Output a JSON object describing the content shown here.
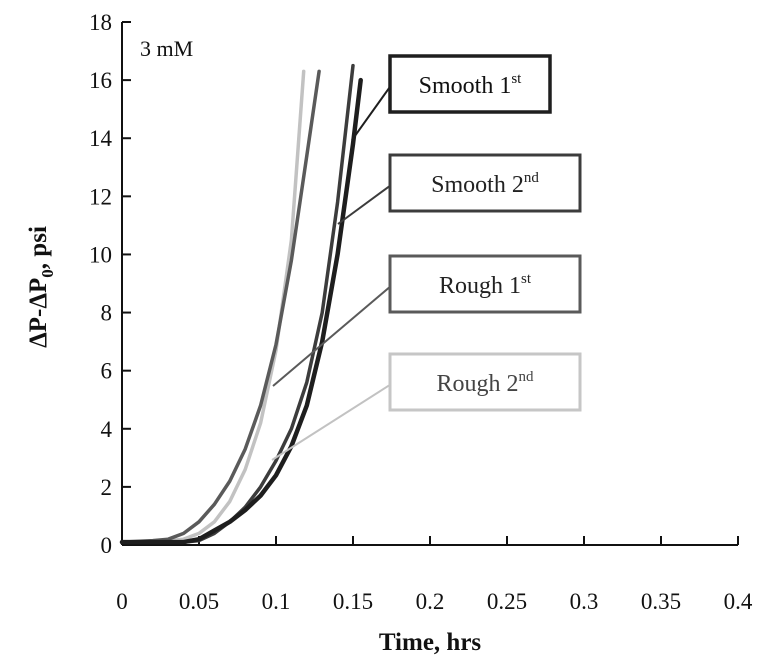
{
  "chart_data": {
    "type": "line",
    "annotation": "3 mM",
    "xlabel": "Time, hrs",
    "ylabel": "ΔP-ΔP",
    "ylabel_subscript": "0",
    "ylabel_unit": ", psi",
    "xlim": [
      0,
      0.4
    ],
    "ylim": [
      0,
      18
    ],
    "x_ticks": [
      0,
      0.05,
      0.1,
      0.15,
      0.2,
      0.25,
      0.3,
      0.35,
      0.4
    ],
    "x_tick_labels": [
      "0",
      "0.05",
      "0.1",
      "0.15",
      "0.2",
      "0.25",
      "0.3",
      "0.35",
      "0.4"
    ],
    "y_ticks": [
      0,
      2,
      4,
      6,
      8,
      10,
      12,
      14,
      16,
      18
    ],
    "y_tick_labels": [
      "0",
      "2",
      "4",
      "6",
      "8",
      "10",
      "12",
      "14",
      "16",
      "18"
    ],
    "grid": false,
    "legend_placement": "right, callout labels",
    "series": [
      {
        "name": "Smooth 1",
        "name_sup": "st",
        "color": "#1e1e1e",
        "width": 4.5,
        "x": [
          0,
          0.02,
          0.04,
          0.05,
          0.06,
          0.07,
          0.08,
          0.09,
          0.1,
          0.11,
          0.12,
          0.13,
          0.14,
          0.15,
          0.155
        ],
        "y": [
          0.1,
          0.1,
          0.1,
          0.2,
          0.5,
          0.8,
          1.2,
          1.7,
          2.4,
          3.4,
          4.8,
          7.0,
          10.0,
          13.8,
          16.0
        ]
      },
      {
        "name": "Smooth 2",
        "name_sup": "nd",
        "color": "#3c3c3c",
        "width": 3.5,
        "x": [
          0,
          0.02,
          0.04,
          0.05,
          0.06,
          0.07,
          0.08,
          0.09,
          0.1,
          0.11,
          0.12,
          0.13,
          0.14,
          0.15
        ],
        "y": [
          0.1,
          0.1,
          0.1,
          0.15,
          0.4,
          0.8,
          1.3,
          2.0,
          2.9,
          4.0,
          5.6,
          8.0,
          11.8,
          16.5
        ]
      },
      {
        "name": "Rough 1",
        "name_sup": "st",
        "color": "#5a5a5a",
        "width": 3.5,
        "x": [
          0,
          0.02,
          0.03,
          0.04,
          0.05,
          0.06,
          0.07,
          0.08,
          0.09,
          0.1,
          0.11,
          0.12,
          0.128
        ],
        "y": [
          0.1,
          0.15,
          0.2,
          0.4,
          0.8,
          1.4,
          2.2,
          3.3,
          4.8,
          6.9,
          9.8,
          13.4,
          16.3
        ]
      },
      {
        "name": "Rough 2",
        "name_sup": "nd",
        "color": "#c2c2c2",
        "width": 3.5,
        "x": [
          0,
          0.02,
          0.04,
          0.05,
          0.06,
          0.07,
          0.08,
          0.09,
          0.1,
          0.11,
          0.118
        ],
        "y": [
          0.1,
          0.1,
          0.2,
          0.4,
          0.8,
          1.5,
          2.6,
          4.2,
          6.7,
          10.5,
          16.3
        ]
      }
    ]
  }
}
